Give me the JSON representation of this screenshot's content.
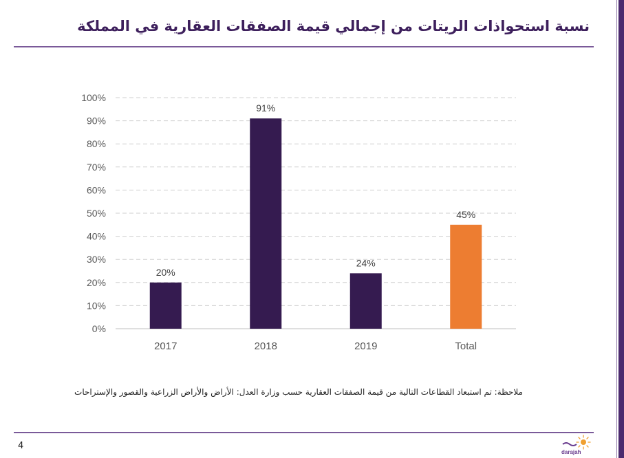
{
  "slide": {
    "title": "نسبة استحواذات الريتات من إجمالي قيمة الصفقات العقارية في المملكة",
    "note": "ملاحظة: تم استبعاد القطاعات التالية من قيمة الصفقات العقارية حسب وزارة العدل: الأراض والأراض الزراعية والقصور والإستراحات",
    "page_number": "4",
    "logo_text": "darajah"
  },
  "colors": {
    "accent": "#3d1f5c",
    "bar": "#351b50",
    "highlight": "#ed7d31",
    "grid": "#cfcfcf",
    "tick": "#595959"
  },
  "chart_data": {
    "type": "bar",
    "title": "",
    "xlabel": "",
    "ylabel": "",
    "ylim": [
      0,
      100
    ],
    "grid": true,
    "categories": [
      "2017",
      "2018",
      "2019",
      "Total"
    ],
    "values": [
      20,
      91,
      24,
      45
    ],
    "data_labels": [
      "20%",
      "91%",
      "24%",
      "45%"
    ],
    "yticks": [
      0,
      10,
      20,
      30,
      40,
      50,
      60,
      70,
      80,
      90,
      100
    ],
    "ytick_labels": [
      "0%",
      "10%",
      "20%",
      "30%",
      "40%",
      "50%",
      "60%",
      "70%",
      "80%",
      "90%",
      "100%"
    ],
    "highlight_category": "Total"
  }
}
